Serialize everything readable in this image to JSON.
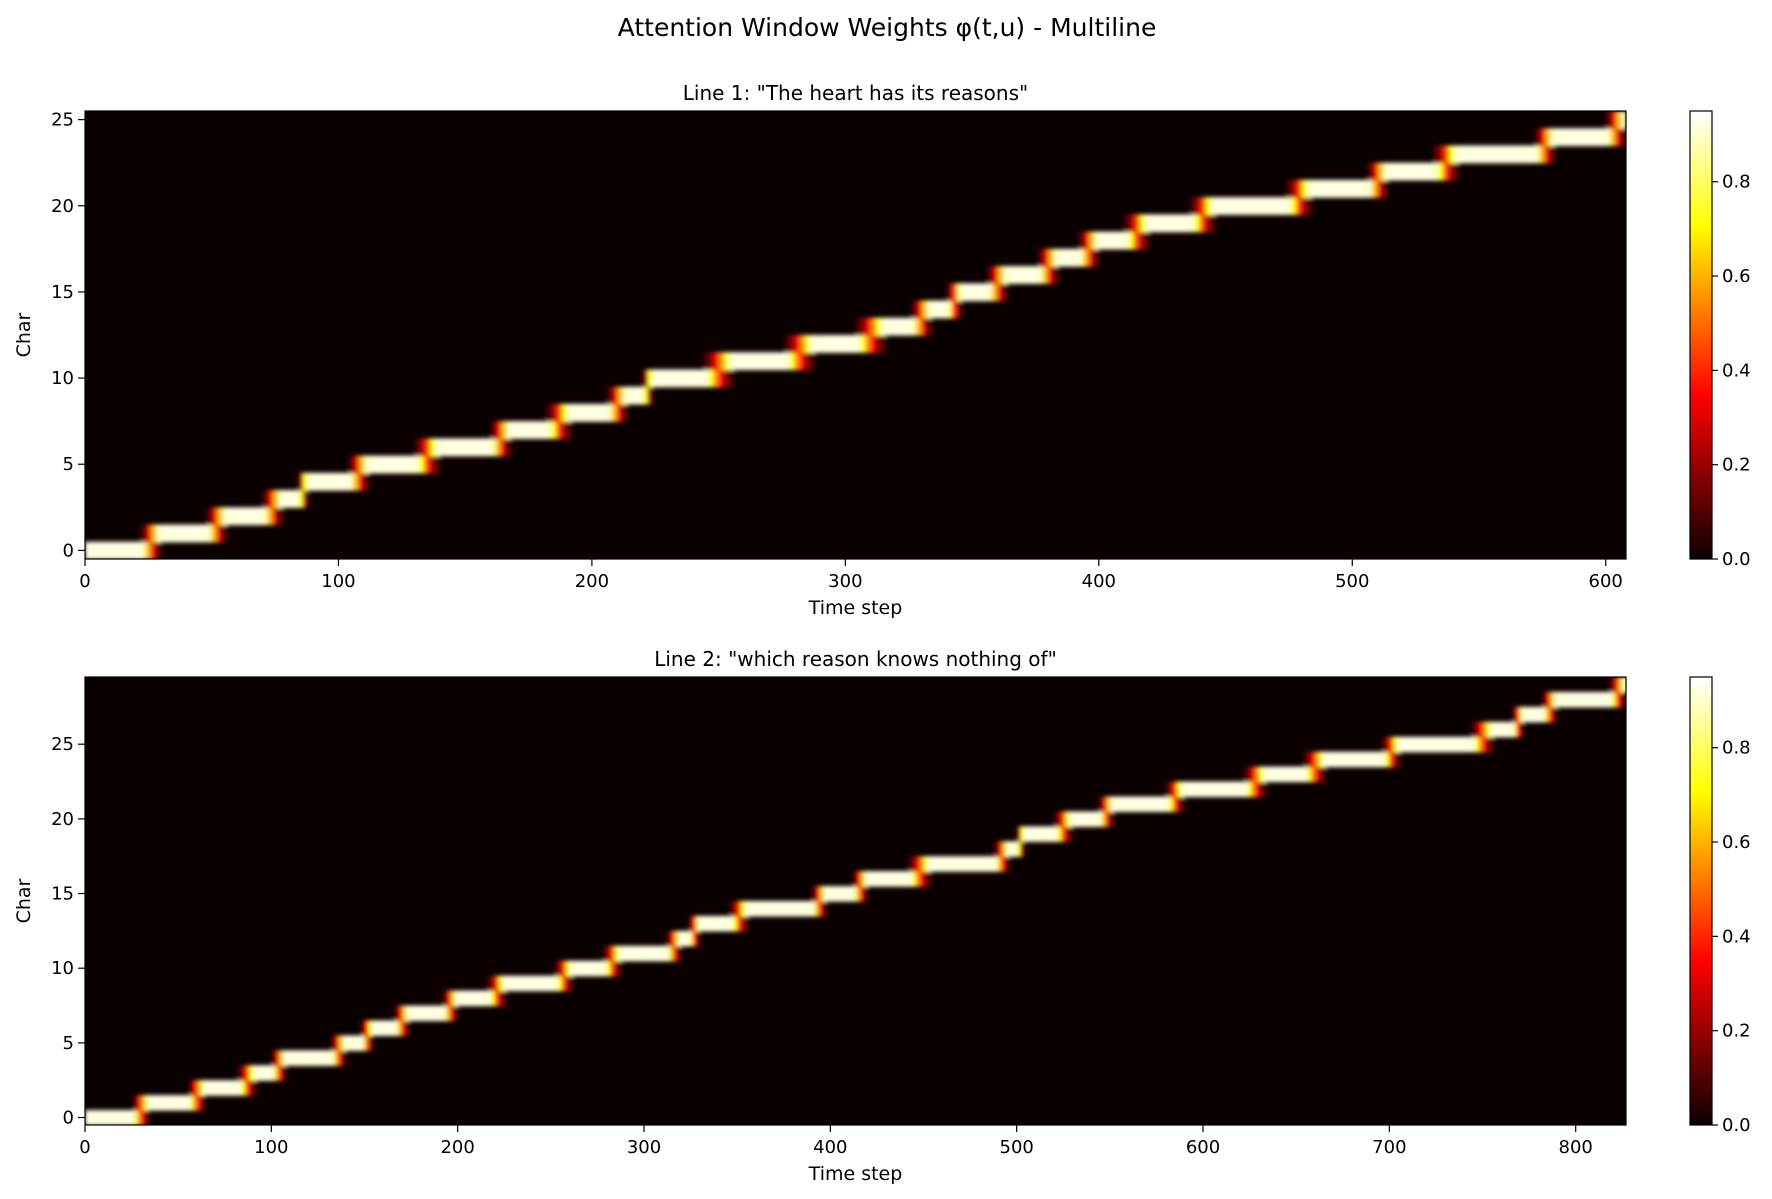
{
  "figure": {
    "suptitle": "Attention Window Weights φ(t,u) - Multiline",
    "colormap": "hot"
  },
  "chart_data": [
    {
      "type": "heatmap",
      "title": "Line 1: \"The heart has its reasons\"",
      "xlabel": "Time step",
      "ylabel": "Char",
      "xlim": [
        0,
        608
      ],
      "ylim": [
        -0.5,
        25.5
      ],
      "xticks": [
        0,
        100,
        200,
        300,
        400,
        500,
        600
      ],
      "yticks": [
        0,
        5,
        10,
        15,
        20,
        25
      ],
      "colorbar": {
        "range": [
          0,
          0.95
        ],
        "ticks": [
          "0.0",
          "0.2",
          "0.4",
          "0.6",
          "0.8"
        ]
      },
      "alignment_path": [
        [
          0,
          0
        ],
        [
          22,
          0
        ],
        [
          30,
          1
        ],
        [
          48,
          1
        ],
        [
          56,
          2
        ],
        [
          70,
          2
        ],
        [
          78,
          3
        ],
        [
          84,
          3
        ],
        [
          88,
          4
        ],
        [
          104,
          4
        ],
        [
          112,
          5
        ],
        [
          130,
          5
        ],
        [
          140,
          6
        ],
        [
          160,
          6
        ],
        [
          168,
          7
        ],
        [
          182,
          7
        ],
        [
          192,
          8
        ],
        [
          206,
          8
        ],
        [
          214,
          9
        ],
        [
          220,
          9
        ],
        [
          224,
          10
        ],
        [
          244,
          10
        ],
        [
          256,
          11
        ],
        [
          276,
          11
        ],
        [
          288,
          12
        ],
        [
          304,
          12
        ],
        [
          316,
          13
        ],
        [
          326,
          13
        ],
        [
          334,
          14
        ],
        [
          340,
          14
        ],
        [
          346,
          15
        ],
        [
          356,
          15
        ],
        [
          364,
          16
        ],
        [
          376,
          16
        ],
        [
          384,
          17
        ],
        [
          392,
          17
        ],
        [
          400,
          18
        ],
        [
          410,
          18
        ],
        [
          420,
          19
        ],
        [
          436,
          19
        ],
        [
          446,
          20
        ],
        [
          474,
          20
        ],
        [
          484,
          21
        ],
        [
          506,
          21
        ],
        [
          514,
          22
        ],
        [
          532,
          22
        ],
        [
          542,
          23
        ],
        [
          572,
          23
        ],
        [
          580,
          24
        ],
        [
          600,
          24
        ],
        [
          608,
          25
        ]
      ]
    },
    {
      "type": "heatmap",
      "title": "Line 2: \"which reason knows nothing of\"",
      "xlabel": "Time step",
      "ylabel": "Char",
      "xlim": [
        0,
        827
      ],
      "ylim": [
        -0.5,
        29.5
      ],
      "xticks": [
        0,
        100,
        200,
        300,
        400,
        500,
        600,
        700,
        800
      ],
      "yticks": [
        0,
        5,
        10,
        15,
        20,
        25
      ],
      "colorbar": {
        "range": [
          0,
          0.95
        ],
        "ticks": [
          "0.0",
          "0.2",
          "0.4",
          "0.6",
          "0.8"
        ]
      },
      "alignment_path": [
        [
          0,
          0
        ],
        [
          25,
          0
        ],
        [
          35,
          1
        ],
        [
          55,
          1
        ],
        [
          65,
          2
        ],
        [
          82,
          2
        ],
        [
          92,
          3
        ],
        [
          100,
          3
        ],
        [
          108,
          4
        ],
        [
          132,
          4
        ],
        [
          140,
          5
        ],
        [
          148,
          5
        ],
        [
          155,
          6
        ],
        [
          166,
          6
        ],
        [
          174,
          7
        ],
        [
          192,
          7
        ],
        [
          200,
          8
        ],
        [
          216,
          8
        ],
        [
          226,
          9
        ],
        [
          252,
          9
        ],
        [
          262,
          10
        ],
        [
          278,
          10
        ],
        [
          288,
          11
        ],
        [
          312,
          11
        ],
        [
          320,
          12
        ],
        [
          324,
          12
        ],
        [
          330,
          13
        ],
        [
          346,
          13
        ],
        [
          356,
          14
        ],
        [
          390,
          14
        ],
        [
          398,
          15
        ],
        [
          412,
          15
        ],
        [
          420,
          16
        ],
        [
          442,
          16
        ],
        [
          454,
          17
        ],
        [
          488,
          17
        ],
        [
          496,
          18
        ],
        [
          500,
          18
        ],
        [
          504,
          19
        ],
        [
          520,
          19
        ],
        [
          530,
          20
        ],
        [
          544,
          20
        ],
        [
          552,
          21
        ],
        [
          580,
          21
        ],
        [
          590,
          22
        ],
        [
          622,
          22
        ],
        [
          634,
          23
        ],
        [
          654,
          23
        ],
        [
          666,
          24
        ],
        [
          696,
          24
        ],
        [
          706,
          25
        ],
        [
          744,
          25
        ],
        [
          756,
          26
        ],
        [
          766,
          26
        ],
        [
          772,
          27
        ],
        [
          782,
          27
        ],
        [
          790,
          28
        ],
        [
          818,
          28
        ],
        [
          827,
          29
        ]
      ]
    }
  ]
}
